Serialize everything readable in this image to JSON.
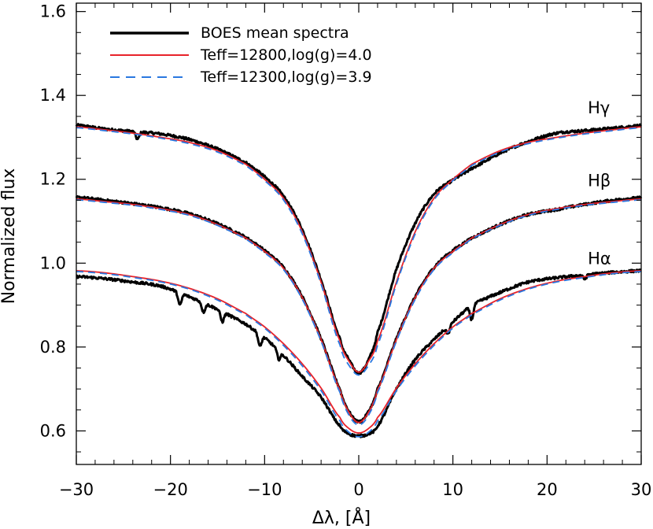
{
  "chart_data": {
    "type": "line",
    "xlabel": "Δλ, [Å]",
    "ylabel": "Normalized flux",
    "xlim": [
      -30,
      30
    ],
    "ylim": [
      0.52,
      1.62
    ],
    "x_ticks": [
      -30,
      -20,
      -10,
      0,
      10,
      20,
      30
    ],
    "x_tick_labels": [
      "−30",
      "−20",
      "−10",
      "0",
      "10",
      "20",
      "30"
    ],
    "y_ticks": [
      0.6,
      0.8,
      1.0,
      1.2,
      1.4,
      1.6
    ],
    "y_tick_labels": [
      "0.6",
      "0.8",
      "1.0",
      "1.2",
      "1.4",
      "1.6"
    ],
    "grid": false,
    "legend": {
      "position": "top-left",
      "entries": [
        {
          "label": "BOES mean spectra",
          "color": "#000000",
          "style": "solid-thick"
        },
        {
          "label": "Teff=12800,log(g)=4.0",
          "color": "#e8232a",
          "style": "solid"
        },
        {
          "label": "Teff=12300,log(g)=3.9",
          "color": "#2a78e0",
          "style": "dashed"
        }
      ]
    },
    "line_labels": [
      {
        "text": "Hγ",
        "x": 26.0,
        "y": 1.357
      },
      {
        "text": "Hβ",
        "x": 26.0,
        "y": 1.184
      },
      {
        "text": "Hα",
        "x": 26.0,
        "y": 0.998
      }
    ],
    "lines": [
      {
        "name": "Hγ",
        "x": [
          -30,
          -27,
          -24,
          -21,
          -18,
          -15,
          -12,
          -10,
          -8,
          -6,
          -4,
          -2,
          -1,
          0,
          1,
          2,
          4,
          6,
          8,
          10,
          12,
          15,
          18,
          21,
          24,
          27,
          30
        ],
        "observed": [
          1.329,
          1.32,
          1.314,
          1.308,
          1.295,
          1.272,
          1.24,
          1.206,
          1.16,
          1.08,
          0.96,
          0.82,
          0.768,
          0.738,
          0.768,
          0.835,
          0.985,
          1.095,
          1.165,
          1.198,
          1.226,
          1.262,
          1.29,
          1.31,
          1.316,
          1.322,
          1.328
        ],
        "model_12800": [
          1.325,
          1.318,
          1.31,
          1.3,
          1.288,
          1.268,
          1.236,
          1.2,
          1.155,
          1.075,
          0.955,
          0.815,
          0.765,
          0.74,
          0.765,
          0.815,
          0.955,
          1.075,
          1.155,
          1.2,
          1.236,
          1.268,
          1.288,
          1.3,
          1.31,
          1.318,
          1.325
        ],
        "model_12300": [
          1.323,
          1.316,
          1.308,
          1.298,
          1.285,
          1.265,
          1.233,
          1.197,
          1.151,
          1.07,
          0.95,
          0.805,
          0.755,
          0.733,
          0.755,
          0.805,
          0.95,
          1.07,
          1.151,
          1.197,
          1.233,
          1.265,
          1.285,
          1.298,
          1.308,
          1.316,
          1.323
        ]
      },
      {
        "name": "Hβ",
        "x": [
          -30,
          -27,
          -24,
          -21,
          -18,
          -15,
          -12,
          -10,
          -8,
          -6,
          -4,
          -2,
          -1,
          0,
          1,
          2,
          4,
          6,
          8,
          10,
          12,
          15,
          18,
          21,
          24,
          27,
          30
        ],
        "observed": [
          1.157,
          1.15,
          1.142,
          1.132,
          1.118,
          1.094,
          1.062,
          1.03,
          0.99,
          0.92,
          0.82,
          0.7,
          0.645,
          0.622,
          0.645,
          0.7,
          0.82,
          0.92,
          0.99,
          1.03,
          1.06,
          1.092,
          1.116,
          1.128,
          1.14,
          1.15,
          1.156
        ],
        "model_12800": [
          1.153,
          1.147,
          1.14,
          1.13,
          1.116,
          1.092,
          1.06,
          1.028,
          0.988,
          0.918,
          0.818,
          0.698,
          0.643,
          0.62,
          0.643,
          0.698,
          0.818,
          0.918,
          0.988,
          1.028,
          1.06,
          1.092,
          1.116,
          1.13,
          1.14,
          1.147,
          1.153
        ],
        "model_12300": [
          1.151,
          1.145,
          1.138,
          1.128,
          1.114,
          1.09,
          1.058,
          1.025,
          0.985,
          0.914,
          0.814,
          0.692,
          0.636,
          0.614,
          0.636,
          0.692,
          0.814,
          0.914,
          0.985,
          1.025,
          1.058,
          1.09,
          1.114,
          1.128,
          1.138,
          1.145,
          1.151
        ]
      },
      {
        "name": "Hα",
        "x": [
          -30,
          -27,
          -24,
          -21,
          -18,
          -15,
          -12,
          -10,
          -8,
          -6,
          -4,
          -2,
          -1,
          0,
          1,
          2,
          4,
          6,
          8,
          10,
          12,
          15,
          18,
          21,
          24,
          27,
          30
        ],
        "observed": [
          0.968,
          0.963,
          0.955,
          0.945,
          0.92,
          0.89,
          0.855,
          0.822,
          0.78,
          0.73,
          0.68,
          0.612,
          0.593,
          0.588,
          0.593,
          0.612,
          0.7,
          0.77,
          0.818,
          0.86,
          0.9,
          0.93,
          0.955,
          0.965,
          0.972,
          0.978,
          0.982
        ],
        "model_12800": [
          0.982,
          0.977,
          0.968,
          0.957,
          0.94,
          0.915,
          0.88,
          0.848,
          0.808,
          0.76,
          0.702,
          0.632,
          0.605,
          0.595,
          0.605,
          0.632,
          0.702,
          0.76,
          0.808,
          0.848,
          0.88,
          0.915,
          0.94,
          0.957,
          0.968,
          0.977,
          0.982
        ],
        "model_12300": [
          0.98,
          0.975,
          0.966,
          0.955,
          0.938,
          0.912,
          0.877,
          0.845,
          0.804,
          0.755,
          0.696,
          0.624,
          0.596,
          0.586,
          0.596,
          0.624,
          0.696,
          0.755,
          0.804,
          0.845,
          0.877,
          0.912,
          0.938,
          0.955,
          0.966,
          0.975,
          0.98
        ]
      }
    ],
    "observed_absorption_features": [
      {
        "x": -23.5,
        "depth": 0.018,
        "line": "Hγ"
      },
      {
        "x": -19.0,
        "depth": 0.03,
        "line": "Hα"
      },
      {
        "x": -16.5,
        "depth": 0.022,
        "line": "Hα"
      },
      {
        "x": -14.5,
        "depth": 0.024,
        "line": "Hα"
      },
      {
        "x": -10.5,
        "depth": 0.03,
        "line": "Hα"
      },
      {
        "x": -8.5,
        "depth": 0.02,
        "line": "Hα"
      },
      {
        "x": 9.5,
        "depth": 0.018,
        "line": "Hα"
      },
      {
        "x": 12.0,
        "depth": 0.034,
        "line": "Hα"
      },
      {
        "x": 24.0,
        "depth": 0.01,
        "line": "Hα"
      }
    ],
    "colors": {
      "observed": "#000000",
      "model_12800": "#e8232a",
      "model_12300": "#2a78e0",
      "axes": "#000000"
    }
  }
}
